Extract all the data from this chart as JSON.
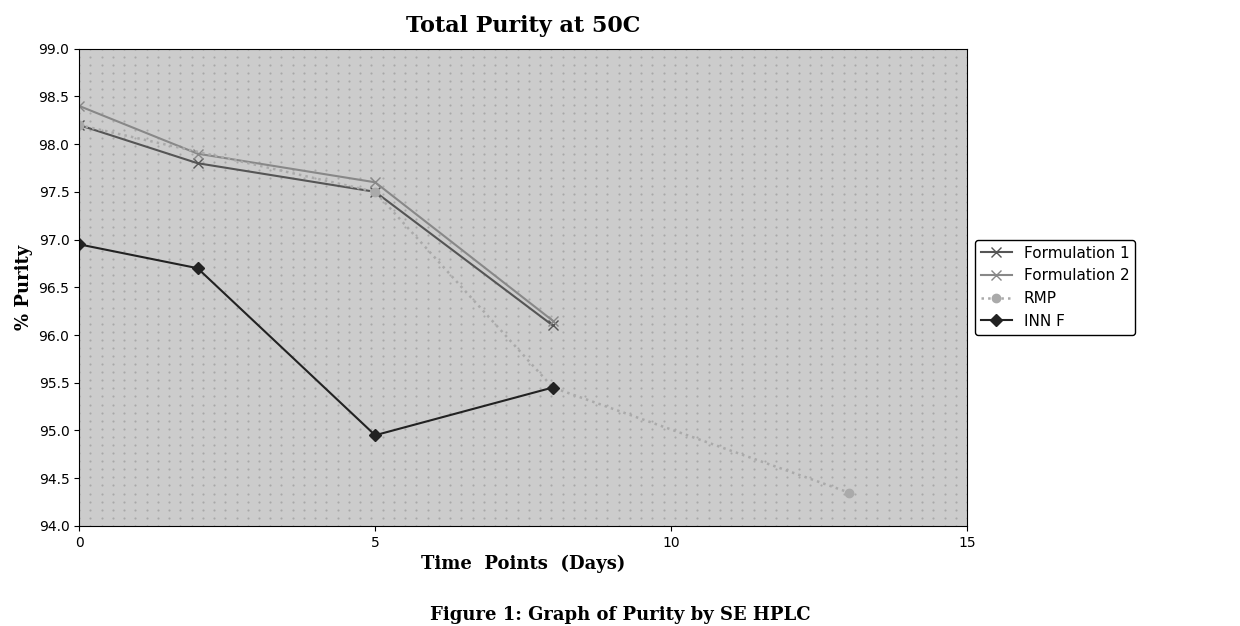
{
  "title": "Total Purity at 50C",
  "xlabel": "Time  Points  (Days)",
  "ylabel": "% Purity",
  "figcaption": "Figure 1: Graph of Purity by SE HPLC",
  "xlim": [
    0,
    15
  ],
  "ylim": [
    94.0,
    99.0
  ],
  "yticks": [
    94.0,
    94.5,
    95.0,
    95.5,
    96.0,
    96.5,
    97.0,
    97.5,
    98.0,
    98.5,
    99.0
  ],
  "xticks": [
    0,
    5,
    10,
    15
  ],
  "series": [
    {
      "label": "Formulation 1",
      "x": [
        0,
        2,
        5,
        8
      ],
      "y": [
        98.2,
        97.8,
        97.5,
        96.1
      ],
      "color": "#555555",
      "linestyle": "-",
      "marker": "x",
      "linewidth": 1.5,
      "markersize": 7
    },
    {
      "label": "Formulation 2",
      "x": [
        0,
        2,
        5,
        8
      ],
      "y": [
        98.4,
        97.9,
        97.6,
        96.15
      ],
      "color": "#888888",
      "linestyle": "-",
      "marker": "x",
      "linewidth": 1.5,
      "markersize": 7
    },
    {
      "label": "RMP",
      "x": [
        0,
        5,
        8,
        13
      ],
      "y": [
        98.2,
        97.5,
        95.45,
        94.35
      ],
      "color": "#aaaaaa",
      "linestyle": ":",
      "marker": "o",
      "linewidth": 1.8,
      "markersize": 6
    },
    {
      "label": "INN F",
      "x": [
        0,
        2,
        5,
        8
      ],
      "y": [
        96.95,
        96.7,
        94.95,
        95.45
      ],
      "color": "#222222",
      "linestyle": "-",
      "marker": "D",
      "linewidth": 1.5,
      "markersize": 6
    }
  ],
  "background_color": "#ffffff",
  "plot_bg_color": "#cccccc",
  "legend_items": [
    "Formulation 1",
    "Formulation 2",
    "RMP",
    "INN F"
  ]
}
